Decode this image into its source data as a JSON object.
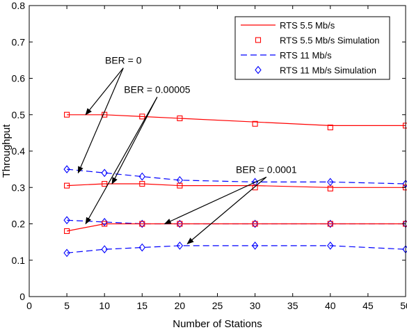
{
  "chart_data": {
    "type": "line",
    "xlabel": "Number of Stations",
    "ylabel": "Throughput",
    "xlim": [
      0,
      50
    ],
    "ylim": [
      0,
      0.8
    ],
    "xticks": [
      "0",
      "5",
      "10",
      "15",
      "20",
      "25",
      "30",
      "35",
      "40",
      "45",
      "50"
    ],
    "yticks": [
      "0",
      "0.1",
      "0.2",
      "0.3",
      "0.4",
      "0.5",
      "0.6",
      "0.7",
      "0.8"
    ],
    "grid": false,
    "legend_position": "top-right",
    "legend": [
      {
        "label": "RTS 5.5 Mb/s",
        "style": "solid-line",
        "color": "#ff0000"
      },
      {
        "label": "RTS 5.5 Mb/s Simulation",
        "style": "square-marker",
        "color": "#ff0000"
      },
      {
        "label": "RTS 11 Mb/s",
        "style": "dashed-line",
        "color": "#0000ff"
      },
      {
        "label": "RTS 11 Mb/s Simulation",
        "style": "diamond-marker",
        "color": "#0000ff"
      }
    ],
    "series": [
      {
        "name": "RTS 5.5 Mb/s",
        "ber": "0",
        "x": [
          5,
          10,
          15,
          20,
          30,
          40,
          50
        ],
        "y": [
          0.5,
          0.5,
          0.495,
          0.49,
          0.48,
          0.47,
          0.47
        ],
        "color": "#ff0000",
        "style": "solid"
      },
      {
        "name": "RTS 5.5 Mb/s Simulation",
        "ber": "0",
        "x": [
          5,
          10,
          15,
          20,
          30,
          40,
          50
        ],
        "y": [
          0.5,
          0.5,
          0.495,
          0.49,
          0.475,
          0.465,
          0.47
        ],
        "color": "#ff0000",
        "marker": "square"
      },
      {
        "name": "RTS 11 Mb/s",
        "ber": "0",
        "x": [
          5,
          10,
          15,
          20,
          30,
          40,
          50
        ],
        "y": [
          0.35,
          0.34,
          0.33,
          0.32,
          0.315,
          0.315,
          0.31
        ],
        "color": "#0000ff",
        "style": "dashed"
      },
      {
        "name": "RTS 11 Mb/s Simulation",
        "ber": "0",
        "x": [
          5,
          10,
          15,
          20,
          30,
          40,
          50
        ],
        "y": [
          0.35,
          0.34,
          0.33,
          0.32,
          0.315,
          0.315,
          0.31
        ],
        "color": "#0000ff",
        "marker": "diamond"
      },
      {
        "name": "RTS 5.5 Mb/s",
        "ber": "0.00005",
        "x": [
          5,
          10,
          15,
          20,
          30,
          40,
          50
        ],
        "y": [
          0.305,
          0.31,
          0.31,
          0.305,
          0.305,
          0.3,
          0.3
        ],
        "color": "#ff0000",
        "style": "solid"
      },
      {
        "name": "RTS 5.5 Mb/s Simulation",
        "ber": "0.00005",
        "x": [
          5,
          10,
          15,
          20,
          30,
          40,
          50
        ],
        "y": [
          0.305,
          0.31,
          0.31,
          0.305,
          0.3,
          0.297,
          0.3
        ],
        "color": "#ff0000",
        "marker": "square"
      },
      {
        "name": "RTS 11 Mb/s",
        "ber": "0.00005",
        "x": [
          5,
          10,
          15,
          20,
          30,
          40,
          50
        ],
        "y": [
          0.21,
          0.205,
          0.2,
          0.2,
          0.2,
          0.2,
          0.2
        ],
        "color": "#0000ff",
        "style": "dashed"
      },
      {
        "name": "RTS 11 Mb/s Simulation",
        "ber": "0.00005",
        "x": [
          5,
          10,
          15,
          20,
          30,
          40,
          50
        ],
        "y": [
          0.21,
          0.205,
          0.2,
          0.2,
          0.2,
          0.2,
          0.2
        ],
        "color": "#0000ff",
        "marker": "diamond"
      },
      {
        "name": "RTS 5.5 Mb/s",
        "ber": "0.0001",
        "x": [
          5,
          10,
          15,
          20,
          30,
          40,
          50
        ],
        "y": [
          0.18,
          0.2,
          0.2,
          0.2,
          0.2,
          0.2,
          0.2
        ],
        "color": "#ff0000",
        "style": "solid"
      },
      {
        "name": "RTS 5.5 Mb/s Simulation",
        "ber": "0.0001",
        "x": [
          5,
          10,
          15,
          20,
          30,
          40,
          50
        ],
        "y": [
          0.18,
          0.2,
          0.2,
          0.2,
          0.2,
          0.2,
          0.2
        ],
        "color": "#ff0000",
        "marker": "square"
      },
      {
        "name": "RTS 11 Mb/s",
        "ber": "0.0001",
        "x": [
          5,
          10,
          15,
          20,
          30,
          40,
          50
        ],
        "y": [
          0.12,
          0.13,
          0.135,
          0.14,
          0.14,
          0.14,
          0.13
        ],
        "color": "#0000ff",
        "style": "dashed"
      },
      {
        "name": "RTS 11 Mb/s Simulation",
        "ber": "0.0001",
        "x": [
          5,
          10,
          15,
          20,
          30,
          40,
          50
        ],
        "y": [
          0.12,
          0.13,
          0.135,
          0.14,
          0.14,
          0.14,
          0.13
        ],
        "color": "#0000ff",
        "marker": "diamond"
      }
    ],
    "annotations": [
      {
        "text": "BER = 0",
        "text_at": [
          12.5,
          0.64
        ],
        "arrows_to": [
          [
            7.5,
            0.5
          ],
          [
            6.5,
            0.34
          ]
        ]
      },
      {
        "text": "BER = 0.00005",
        "text_at": [
          17.0,
          0.56
        ],
        "arrows_to": [
          [
            11.0,
            0.31
          ],
          [
            7.5,
            0.2
          ]
        ]
      },
      {
        "text": "BER = 0.0001",
        "text_at": [
          31.5,
          0.34
        ],
        "arrows_to": [
          [
            18.0,
            0.2
          ],
          [
            21.0,
            0.145
          ]
        ]
      }
    ]
  }
}
